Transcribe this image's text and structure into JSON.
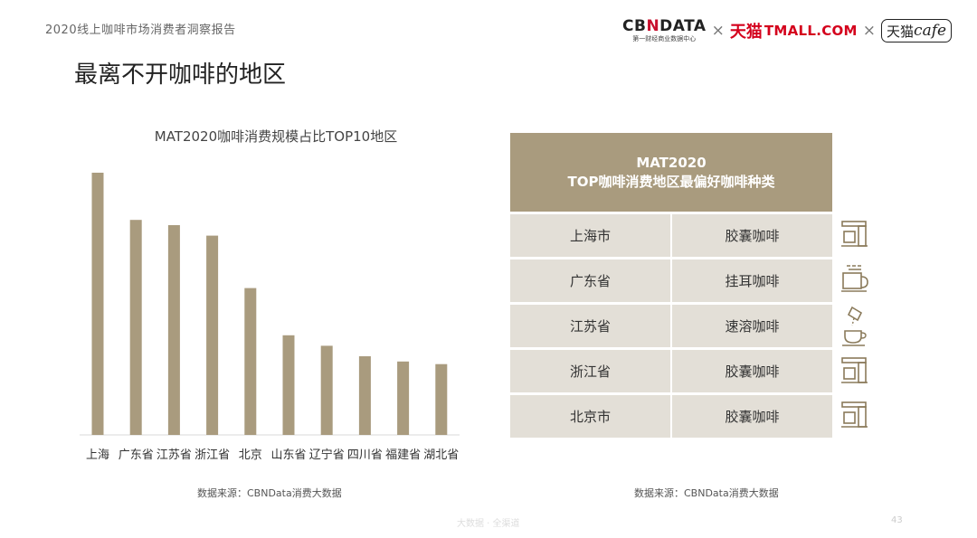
{
  "header": {
    "report_title": "2020线上咖啡市场消费者洞察报告",
    "slide_title": "最离不开咖啡的地区"
  },
  "logos": {
    "cbn_main_a": "CB",
    "cbn_main_b": "N",
    "cbn_main_c": "DATA",
    "cbn_sub": "第一财经商业数据中心",
    "times": "×",
    "tmall_cn": "天猫",
    "tmall_en": "TMALL.COM",
    "tcafe_cn": "天猫",
    "tcafe_en": "cafe"
  },
  "chart_data": {
    "type": "bar",
    "title": "MAT2020咖啡消费规模占比TOP10地区",
    "categories": [
      "上海",
      "广东省",
      "江苏省",
      "浙江省",
      "北京",
      "山东省",
      "辽宁省",
      "四川省",
      "福建省",
      "湖北省"
    ],
    "values": [
      100,
      82,
      80,
      76,
      56,
      38,
      34,
      30,
      28,
      27
    ],
    "value_scale": "relative (no axis shown)",
    "color": "#a99b7e",
    "ylim": [
      0,
      100
    ],
    "grid": false,
    "legend": "none"
  },
  "chart_source": "数据来源：CBNData消费大数据",
  "table": {
    "head_line1": "MAT2020",
    "head_line2": "TOP咖啡消费地区最偏好咖啡种类",
    "rows": [
      {
        "region": "上海市",
        "type": "胶囊咖啡",
        "icon": "capsule-machine-icon"
      },
      {
        "region": "广东省",
        "type": "挂耳咖啡",
        "icon": "drip-coffee-icon"
      },
      {
        "region": "江苏省",
        "type": "速溶咖啡",
        "icon": "instant-coffee-icon"
      },
      {
        "region": "浙江省",
        "type": "胶囊咖啡",
        "icon": "capsule-machine-icon"
      },
      {
        "region": "北京市",
        "type": "胶囊咖啡",
        "icon": "capsule-machine-icon"
      }
    ]
  },
  "table_source": "数据来源：CBNData消费大数据",
  "footer": {
    "watermark": "大数据 · 全渠道",
    "page_number": "43"
  },
  "colors": {
    "bar": "#a99b7e",
    "table_head": "#a99b7e",
    "table_row": "#e3dfd7",
    "tmall_red": "#d4001c"
  }
}
